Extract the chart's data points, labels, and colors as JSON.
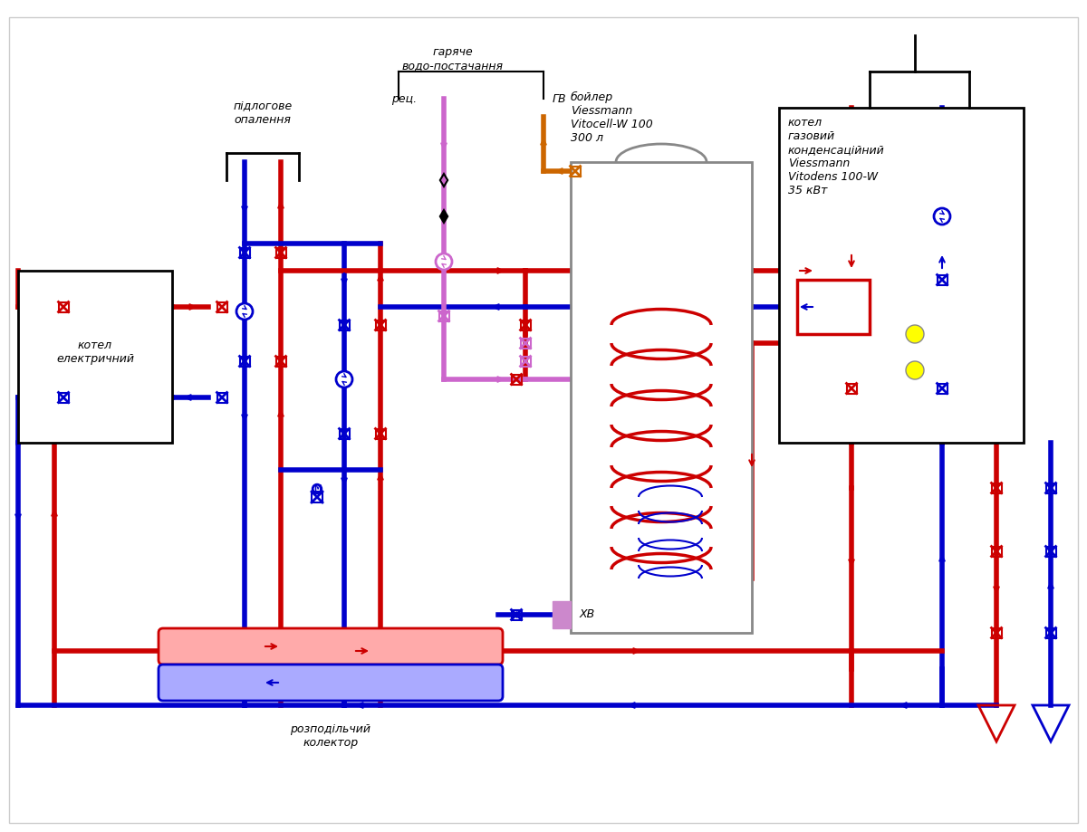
{
  "bg_color": "#ffffff",
  "red": "#cc0000",
  "blue": "#0000cc",
  "orange": "#cc6600",
  "pink": "#cc66cc",
  "gray": "#888888",
  "yellow": "#ffff00",
  "black": "#000000",
  "line_width": 4,
  "labels": {
    "floor_heating": "підлогове\nопалення",
    "hot_water": "гаряче\nводо-постачання",
    "boiler": "бойлер\nViessmann\nVitocell-W 100\n300 л",
    "gas_boiler": "котел\nгазовий\nконденсаційний\nViessmann\nVitodens 100-W\n35 кВт",
    "elec_boiler": "котел\nелектричний",
    "collector": "розподільчий\nколектор",
    "rec": "рец.",
    "gv": "ГВ",
    "xv": "ХВ"
  }
}
